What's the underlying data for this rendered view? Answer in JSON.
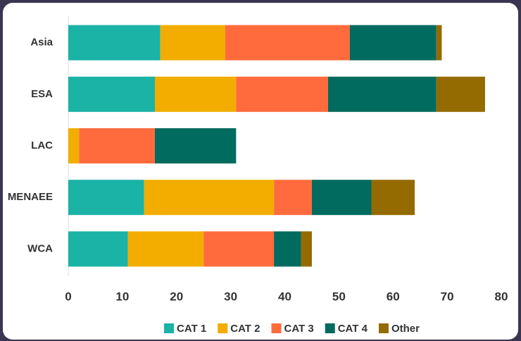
{
  "chart_data": {
    "type": "stacked_bar_horizontal",
    "categories": [
      "Asia",
      "ESA",
      "LAC",
      "MENAEE",
      "WCA"
    ],
    "series": [
      {
        "name": "CAT 1",
        "color": "#1ab3a6",
        "values": [
          17,
          16,
          0,
          14,
          11
        ]
      },
      {
        "name": "CAT 2",
        "color": "#f2ad00",
        "values": [
          12,
          15,
          2,
          24,
          14
        ]
      },
      {
        "name": "CAT 3",
        "color": "#ff6b3d",
        "values": [
          23,
          17,
          14,
          7,
          13
        ]
      },
      {
        "name": "CAT 4",
        "color": "#006b5e",
        "values": [
          16,
          20,
          15,
          11,
          5
        ]
      },
      {
        "name": "Other",
        "color": "#946b00",
        "values": [
          1,
          9,
          0,
          8,
          2
        ]
      }
    ],
    "xlim": [
      0,
      80
    ],
    "xticks": [
      0,
      10,
      20,
      30,
      40,
      50,
      60,
      70,
      80
    ],
    "legend": "bottom"
  }
}
